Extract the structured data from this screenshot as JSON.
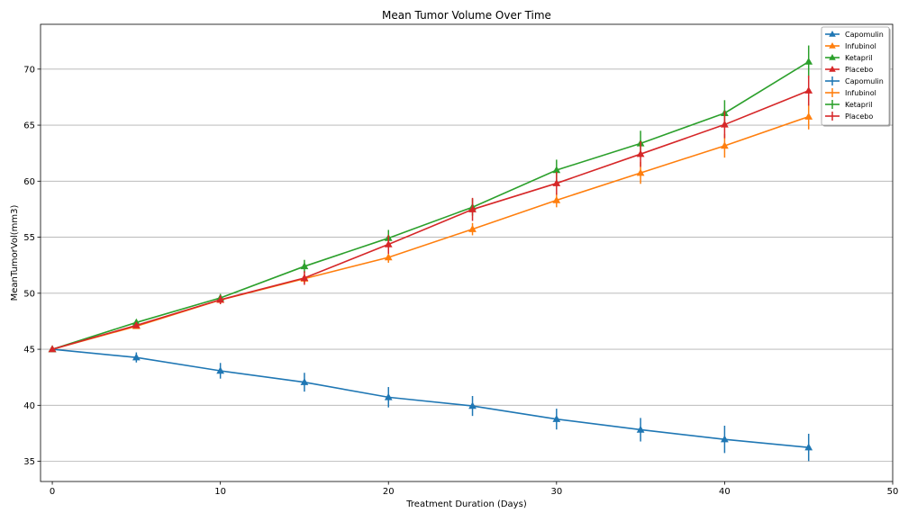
{
  "chart_data": {
    "type": "line",
    "title": "Mean Tumor Volume Over Time",
    "xlabel": "Treatment Duration (Days)",
    "ylabel": "MeanTumorVol(mm3)",
    "xlim": [
      -0.7,
      50
    ],
    "ylim": [
      33.2,
      74.0
    ],
    "xticks": [
      0,
      10,
      20,
      30,
      40,
      50
    ],
    "yticks": [
      35,
      40,
      45,
      50,
      55,
      60,
      65,
      70
    ],
    "grid": "horizontal",
    "legend_position": "top-right",
    "x": [
      0,
      5,
      10,
      15,
      20,
      25,
      30,
      35,
      40,
      45
    ],
    "series": [
      {
        "name": "Capomulin",
        "color": "#1f77b4",
        "values": [
          45.0,
          44.27,
          43.08,
          42.06,
          40.72,
          39.94,
          38.77,
          37.82,
          36.96,
          36.24
        ],
        "errors": [
          0.0,
          0.45,
          0.7,
          0.84,
          0.91,
          0.89,
          0.93,
          1.05,
          1.22,
          1.22
        ]
      },
      {
        "name": "Infubinol",
        "color": "#ff7f0e",
        "values": [
          45.0,
          47.06,
          49.4,
          51.3,
          53.2,
          55.72,
          58.3,
          60.74,
          63.16,
          65.76
        ],
        "errors": [
          0.0,
          0.24,
          0.28,
          0.36,
          0.48,
          0.55,
          0.63,
          0.98,
          1.06,
          1.14
        ]
      },
      {
        "name": "Ketapril",
        "color": "#2ca02c",
        "values": [
          45.0,
          47.39,
          49.58,
          52.4,
          54.92,
          57.68,
          60.99,
          63.37,
          66.07,
          70.66
        ],
        "errors": [
          0.0,
          0.26,
          0.36,
          0.58,
          0.73,
          0.76,
          0.93,
          1.13,
          1.16,
          1.45
        ]
      },
      {
        "name": "Placebo",
        "color": "#d62728",
        "values": [
          45.0,
          47.13,
          49.42,
          51.36,
          54.36,
          57.48,
          59.81,
          62.42,
          65.05,
          68.08
        ],
        "errors": [
          0.0,
          0.22,
          0.4,
          0.61,
          0.84,
          1.03,
          1.02,
          1.14,
          1.22,
          1.34
        ]
      }
    ],
    "legend": {
      "marker_entries": [
        "Capomulin",
        "Infubinol",
        "Ketapril",
        "Placebo"
      ],
      "errorbar_entries": [
        "Capomulin",
        "Infubinol",
        "Ketapril",
        "Placebo"
      ]
    }
  }
}
